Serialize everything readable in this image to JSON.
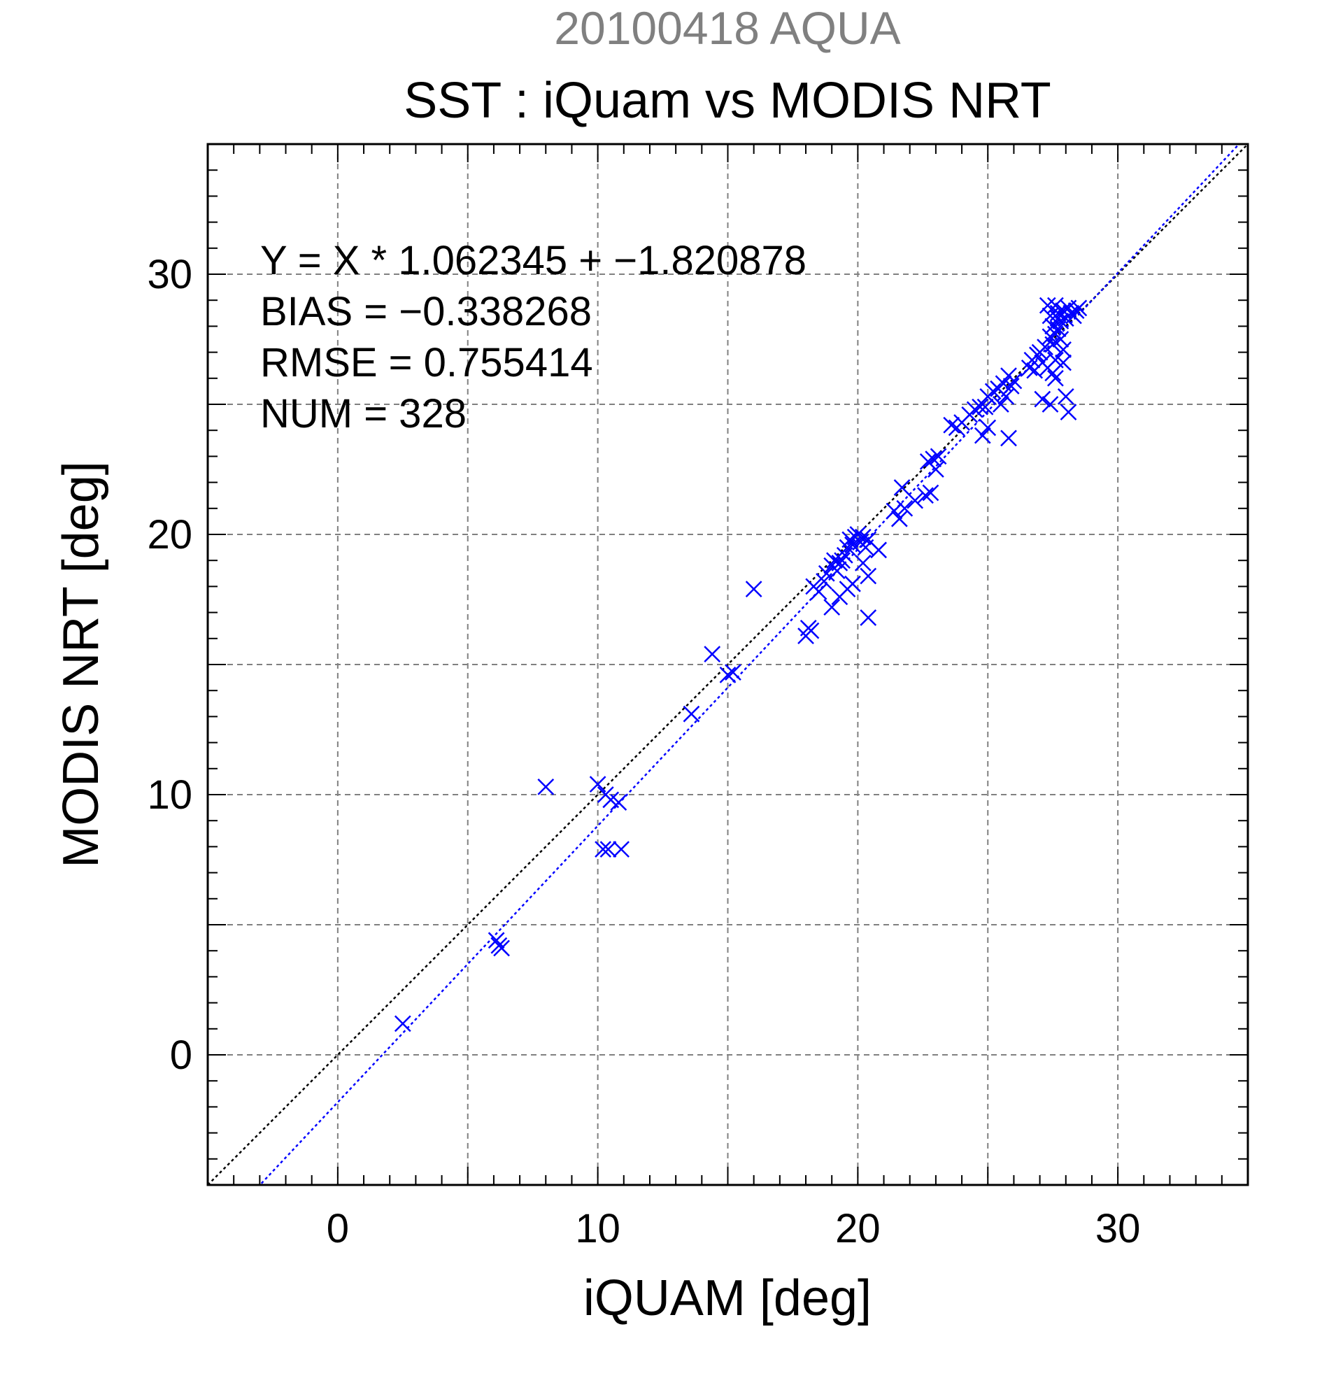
{
  "chart_data": {
    "type": "scatter",
    "title": "SST : iQuam vs MODIS NRT",
    "subtitle": "20100418 AQUA",
    "xlabel": "iQUAM [deg]",
    "ylabel": "MODIS NRT [deg]",
    "xlim": [
      -5,
      35
    ],
    "ylim": [
      -5,
      35
    ],
    "xticks": [
      0,
      10,
      20,
      30
    ],
    "yticks": [
      0,
      10,
      20,
      30
    ],
    "grid": true,
    "stats": [
      "Y = X * 1.062345 + −1.820878",
      "BIAS = −0.338268",
      "RMSE = 0.755414",
      "NUM = 328"
    ],
    "lines": [
      {
        "kind": "one_to_one",
        "slope": 1.0,
        "intercept": 0.0,
        "color": "#000000",
        "style": "dotted"
      },
      {
        "kind": "regression",
        "slope": 1.062345,
        "intercept": -1.820878,
        "color": "#0000ff",
        "style": "dotted"
      }
    ],
    "series": [
      {
        "marker": "x",
        "color": "#0000ff",
        "points": [
          [
            2.5,
            1.2
          ],
          [
            6.1,
            4.4
          ],
          [
            6.3,
            4.1
          ],
          [
            6.2,
            4.2
          ],
          [
            8.0,
            10.3
          ],
          [
            10.0,
            10.4
          ],
          [
            10.3,
            10.0
          ],
          [
            10.5,
            9.8
          ],
          [
            10.8,
            9.7
          ],
          [
            10.2,
            7.9
          ],
          [
            10.4,
            7.9
          ],
          [
            10.9,
            7.9
          ],
          [
            13.6,
            13.1
          ],
          [
            14.4,
            15.4
          ],
          [
            15.0,
            14.6
          ],
          [
            15.2,
            14.7
          ],
          [
            16.0,
            17.9
          ],
          [
            18.0,
            16.1
          ],
          [
            18.1,
            16.4
          ],
          [
            18.2,
            16.3
          ],
          [
            18.3,
            18.0
          ],
          [
            18.5,
            17.8
          ],
          [
            18.7,
            18.2
          ],
          [
            18.8,
            18.5
          ],
          [
            19.0,
            18.8
          ],
          [
            19.1,
            19.0
          ],
          [
            19.2,
            18.6
          ],
          [
            19.3,
            18.9
          ],
          [
            19.4,
            19.0
          ],
          [
            19.5,
            19.2
          ],
          [
            19.0,
            17.2
          ],
          [
            19.3,
            17.6
          ],
          [
            19.6,
            17.9
          ],
          [
            19.8,
            18.1
          ],
          [
            19.6,
            19.5
          ],
          [
            19.7,
            19.8
          ],
          [
            19.8,
            19.6
          ],
          [
            19.9,
            19.9
          ],
          [
            20.0,
            20.0
          ],
          [
            20.1,
            19.7
          ],
          [
            20.2,
            19.9
          ],
          [
            20.3,
            19.5
          ],
          [
            20.4,
            19.8
          ],
          [
            20.2,
            18.9
          ],
          [
            20.4,
            18.4
          ],
          [
            20.4,
            16.8
          ],
          [
            20.8,
            19.4
          ],
          [
            21.4,
            20.9
          ],
          [
            21.6,
            20.6
          ],
          [
            21.8,
            21.0
          ],
          [
            21.7,
            21.8
          ],
          [
            22.2,
            21.3
          ],
          [
            22.6,
            21.5
          ],
          [
            22.8,
            21.6
          ],
          [
            22.7,
            22.8
          ],
          [
            22.9,
            22.9
          ],
          [
            23.1,
            23.0
          ],
          [
            23.0,
            22.5
          ],
          [
            23.6,
            24.2
          ],
          [
            23.8,
            24.1
          ],
          [
            24.0,
            24.3
          ],
          [
            24.3,
            24.6
          ],
          [
            24.5,
            24.8
          ],
          [
            24.7,
            24.9
          ],
          [
            24.9,
            24.9
          ],
          [
            24.8,
            23.8
          ],
          [
            25.0,
            24.1
          ],
          [
            25.8,
            23.7
          ],
          [
            25.0,
            25.3
          ],
          [
            25.2,
            25.5
          ],
          [
            25.4,
            25.6
          ],
          [
            25.6,
            25.8
          ],
          [
            25.8,
            26.1
          ],
          [
            25.9,
            25.7
          ],
          [
            26.0,
            25.9
          ],
          [
            25.5,
            25.0
          ],
          [
            25.7,
            25.3
          ],
          [
            26.6,
            26.4
          ],
          [
            26.7,
            26.7
          ],
          [
            26.8,
            26.3
          ],
          [
            26.9,
            26.9
          ],
          [
            27.0,
            27.0
          ],
          [
            27.1,
            26.6
          ],
          [
            27.2,
            27.2
          ],
          [
            27.3,
            26.4
          ],
          [
            27.4,
            27.6
          ],
          [
            27.5,
            27.3
          ],
          [
            27.1,
            25.2
          ],
          [
            27.4,
            25.0
          ],
          [
            27.5,
            26.2
          ],
          [
            27.6,
            26.7
          ],
          [
            27.7,
            27.9
          ],
          [
            27.8,
            28.2
          ],
          [
            27.9,
            28.6
          ],
          [
            27.6,
            28.8
          ],
          [
            27.7,
            28.5
          ],
          [
            27.8,
            27.5
          ],
          [
            27.9,
            27.1
          ],
          [
            28.0,
            28.3
          ],
          [
            28.1,
            28.7
          ],
          [
            28.2,
            28.5
          ],
          [
            28.3,
            28.4
          ],
          [
            28.4,
            28.6
          ],
          [
            28.5,
            28.7
          ],
          [
            27.5,
            28.0
          ],
          [
            27.6,
            27.7
          ],
          [
            27.7,
            28.3
          ],
          [
            27.4,
            28.4
          ],
          [
            27.3,
            28.8
          ],
          [
            28.0,
            25.3
          ],
          [
            28.1,
            24.7
          ],
          [
            27.6,
            26.0
          ],
          [
            27.9,
            26.6
          ]
        ]
      }
    ]
  }
}
